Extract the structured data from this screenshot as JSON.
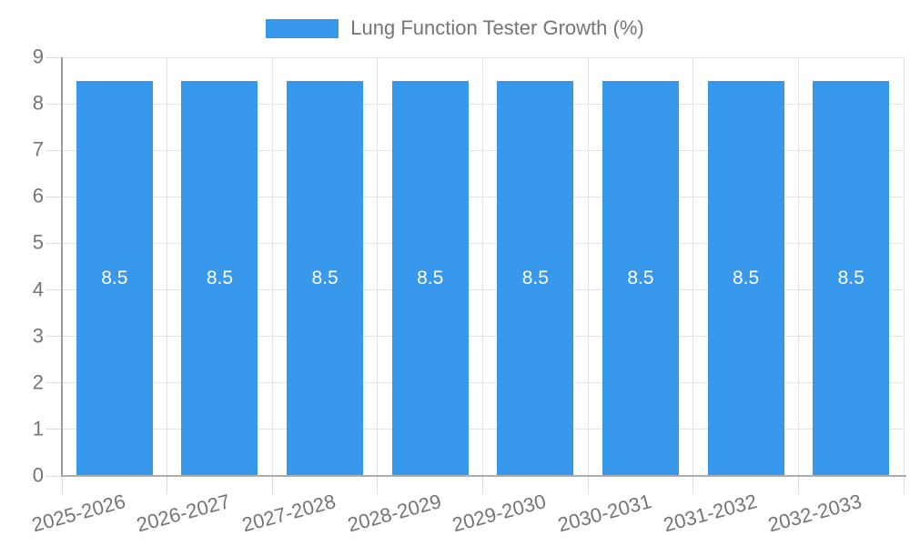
{
  "legend": {
    "series_label": "Lung Function Tester Growth (%)"
  },
  "chart_data": {
    "type": "bar",
    "title": "",
    "xlabel": "",
    "ylabel": "",
    "categories": [
      "2025-2026",
      "2026-2027",
      "2027-2028",
      "2028-2029",
      "2029-2030",
      "2030-2031",
      "2031-2032",
      "2032-2033"
    ],
    "series": [
      {
        "name": "Lung Function Tester Growth (%)",
        "values": [
          8.5,
          8.5,
          8.5,
          8.5,
          8.5,
          8.5,
          8.5,
          8.5
        ],
        "color": "#3899EC"
      }
    ],
    "bar_value_labels": [
      "8.5",
      "8.5",
      "8.5",
      "8.5",
      "8.5",
      "8.5",
      "8.5",
      "8.5"
    ],
    "ylim": [
      0,
      9
    ],
    "yticks": [
      0,
      1,
      2,
      3,
      4,
      5,
      6,
      7,
      8,
      9
    ],
    "grid": true,
    "legend_position": "top",
    "value_label_color": "#FFFFFF",
    "axis_text_color": "#757575",
    "x_label_rotation_deg": -15
  }
}
